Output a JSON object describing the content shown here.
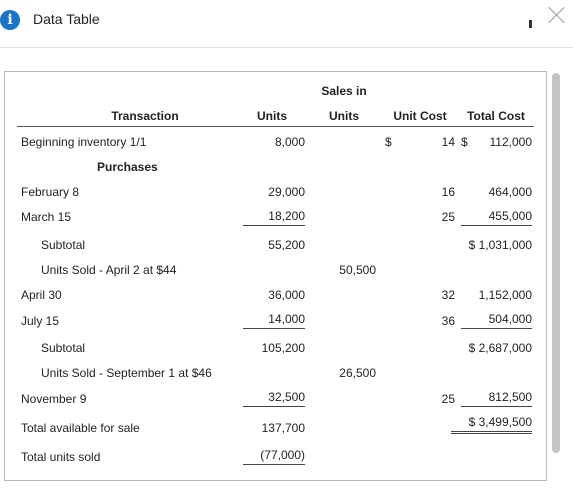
{
  "window": {
    "title": "Data Table"
  },
  "table": {
    "headers": {
      "transaction": "Transaction",
      "units": "Units",
      "sales_in_units_line1": "Sales in",
      "sales_in_units_line2": "Units",
      "unit_cost": "Unit Cost",
      "total_cost": "Total Cost"
    },
    "rows": [
      {
        "label": "Beginning inventory 1/1",
        "units": "8,000",
        "sales": "",
        "unit_cost_sym": "$",
        "unit_cost": "14",
        "total_cost": "$",
        "total_cost_val": "112,000"
      },
      {
        "label": "Purchases"
      },
      {
        "label": "February 8",
        "units": "29,000",
        "unit_cost": "16",
        "total_cost_val": "464,000"
      },
      {
        "label": "March 15",
        "units": "18,200",
        "unit_cost": "25",
        "total_cost_val": "455,000"
      },
      {
        "label": "Subtotal",
        "units": "55,200",
        "total_cost_val": "$ 1,031,000"
      },
      {
        "label": "Units Sold - April 2 at $44",
        "sales": "50,500"
      },
      {
        "label": "April 30",
        "units": "36,000",
        "unit_cost": "32",
        "total_cost_val": "1,152,000"
      },
      {
        "label": "July 15",
        "units": "14,000",
        "unit_cost": "36",
        "total_cost_val": "504,000"
      },
      {
        "label": "Subtotal",
        "units": "105,200",
        "total_cost_val": "$ 2,687,000"
      },
      {
        "label": "Units Sold - September 1 at $46",
        "sales": "26,500"
      },
      {
        "label": "November 9",
        "units": "32,500",
        "unit_cost": "25",
        "total_cost_val": "812,500"
      },
      {
        "label": "Total available for sale",
        "units": "137,700",
        "total_cost_val": "$ 3,499,500"
      },
      {
        "label": "Total units sold",
        "units": "(77,000)"
      }
    ]
  }
}
